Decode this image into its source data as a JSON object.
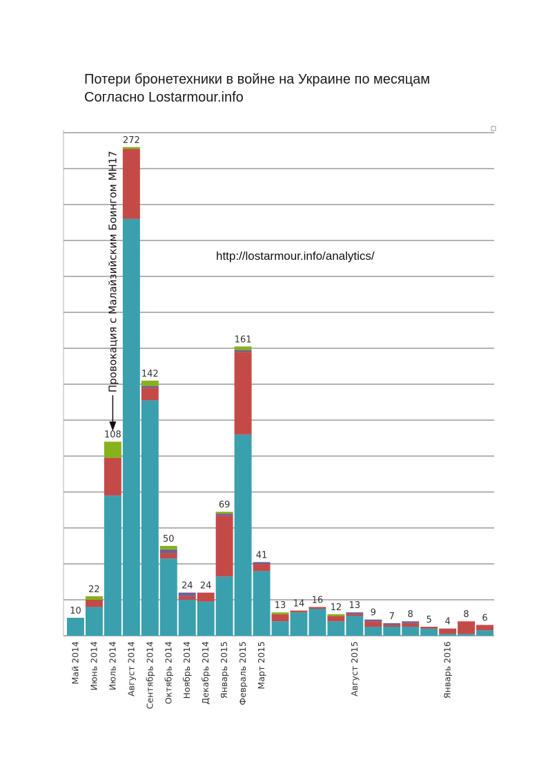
{
  "title_line1": "Потери бронетехники в войне на Украине по месяцам",
  "title_line2": "Согласно Lostarmour.info",
  "source_url": "http://lostarmour.info/analytics/",
  "annotation": "Провокация с Малайзийским Боингом МН17",
  "annotation_target": "Июль 2014",
  "chart_data": {
    "type": "bar",
    "stacked": true,
    "grid": true,
    "ylim": [
      0,
      280
    ],
    "legend": "none",
    "colors": [
      "#3aa0ae",
      "#c44a48",
      "#6f5f91",
      "#86b21c"
    ],
    "categories": [
      "Май 2014",
      "Июнь 2014",
      "Июль 2014",
      "Август 2014",
      "Сентябрь 2014",
      "Октябрь 2014",
      "Ноябрь 2014",
      "Декабрь 2014",
      "Январь 2015",
      "Февраль 2015",
      "Март 2015",
      "",
      "",
      "",
      "",
      "Август 2015",
      "",
      "",
      "",
      "",
      "Январь 2016",
      "",
      ""
    ],
    "totals": [
      10,
      22,
      108,
      272,
      142,
      50,
      24,
      24,
      69,
      161,
      41,
      13,
      14,
      16,
      12,
      13,
      9,
      7,
      8,
      5,
      4,
      8,
      6
    ],
    "series": [
      {
        "values": [
          10,
          16,
          78,
          232,
          131,
          43,
          20,
          19,
          33,
          112,
          36,
          8,
          13,
          15,
          8,
          11,
          5,
          5,
          5,
          4,
          1,
          1,
          3
        ]
      },
      {
        "values": [
          0,
          4,
          21,
          39,
          7,
          3,
          2,
          5,
          34,
          46,
          4,
          4,
          1,
          1,
          3,
          1,
          3,
          1,
          2,
          1,
          3,
          7,
          3
        ]
      },
      {
        "values": [
          0,
          0,
          0,
          0,
          1,
          2,
          2,
          0,
          1,
          1,
          1,
          0,
          0,
          0,
          0,
          1,
          1,
          1,
          1,
          0,
          0,
          0,
          0
        ]
      },
      {
        "values": [
          0,
          2,
          9,
          1,
          3,
          2,
          0,
          0,
          1,
          2,
          0,
          1,
          0,
          0,
          1,
          0,
          0,
          0,
          0,
          0,
          0,
          0,
          0
        ]
      }
    ]
  }
}
